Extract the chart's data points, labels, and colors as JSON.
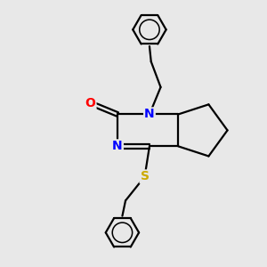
{
  "bg_color": "#e8e8e8",
  "bond_color": "#000000",
  "bond_width": 1.6,
  "atom_colors": {
    "N": "#0000ff",
    "O": "#ff0000",
    "S": "#ccaa00",
    "C": "#000000"
  },
  "font_size_atom": 10,
  "xlim": [
    -3.2,
    3.2
  ],
  "ylim": [
    -4.2,
    4.0
  ]
}
